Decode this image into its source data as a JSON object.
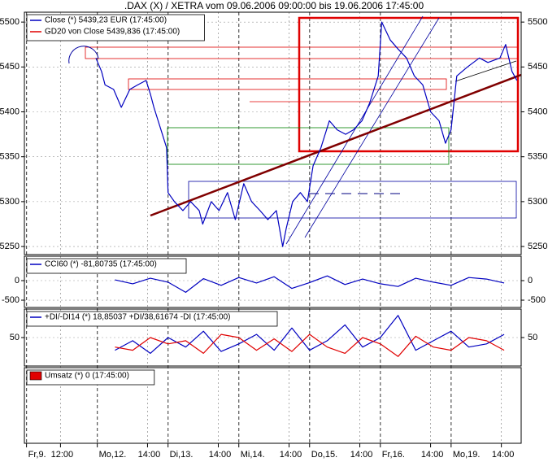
{
  "title": ".DAX (X) / XETRA vom 09.06.2006 09:00:00 bis 19.06.2006 17:45:00",
  "xaxis": {
    "xlim": [
      -0.03,
      6.99
    ],
    "xticks": [
      {
        "value": 0,
        "label": "Fr,9."
      },
      {
        "value": 0.48,
        "label": "12:00"
      },
      {
        "value": 1,
        "label": "Mo,12."
      },
      {
        "value": 1.71,
        "label": "14:00"
      },
      {
        "value": 2,
        "label": "Di,13."
      },
      {
        "value": 2.71,
        "label": "14:00"
      },
      {
        "value": 3,
        "label": "Mi,14."
      },
      {
        "value": 3.71,
        "label": "14:00"
      },
      {
        "value": 4,
        "label": "Do,15."
      },
      {
        "value": 4.71,
        "label": "14:00"
      },
      {
        "value": 5,
        "label": "Fr,16."
      },
      {
        "value": 5.71,
        "label": "14:00"
      },
      {
        "value": 6,
        "label": "Mo,19."
      },
      {
        "value": 6.71,
        "label": "14:00"
      }
    ]
  },
  "chart_data": [
    {
      "type": "line",
      "legend": [
        {
          "text": "Close (*) 5439,23 EUR (17:45:00)",
          "color": "#0000c0"
        },
        {
          "text": "GD20 von Close 5439,836 (17:45:00)",
          "color": "#e00000"
        }
      ],
      "ylim": [
        5241,
        5511
      ],
      "yticks": [
        5250,
        5300,
        5350,
        5400,
        5450,
        5500
      ],
      "series": [
        {
          "color": "#0000c0",
          "x": [
            0.98,
            1.06,
            1.11,
            1.23,
            1.34,
            1.46,
            1.57,
            1.69,
            1.75,
            1.8,
            1.86,
            1.92,
            1.98,
            2.0,
            2.09,
            2.21,
            2.32,
            2.44,
            2.49,
            2.61,
            2.72,
            2.84,
            2.95,
            3.07,
            3.18,
            3.3,
            3.41,
            3.53,
            3.62,
            3.67,
            3.76,
            3.87,
            3.97,
            4.05,
            4.16,
            4.28,
            4.39,
            4.51,
            4.62,
            4.74,
            4.85,
            4.97,
            5.02,
            5.14,
            5.25,
            5.37,
            5.48,
            5.6,
            5.71,
            5.83,
            5.92,
            6.0,
            6.08,
            6.23,
            6.4,
            6.52,
            6.69,
            6.77,
            6.86,
            6.93
          ],
          "values": [
            5460,
            5445,
            5430,
            5425,
            5405,
            5425,
            5430,
            5435,
            5420,
            5405,
            5390,
            5375,
            5360,
            5310,
            5300,
            5290,
            5300,
            5290,
            5275,
            5300,
            5290,
            5310,
            5280,
            5320,
            5300,
            5290,
            5280,
            5290,
            5250,
            5270,
            5300,
            5310,
            5300,
            5340,
            5360,
            5390,
            5380,
            5375,
            5380,
            5390,
            5410,
            5440,
            5500,
            5480,
            5470,
            5460,
            5440,
            5430,
            5400,
            5390,
            5365,
            5380,
            5440,
            5450,
            5460,
            5455,
            5460,
            5475,
            5445,
            5435
          ]
        }
      ]
    },
    {
      "type": "line",
      "legend": [
        {
          "text": "CCI60 (*) -81,80735 (17:45:00)",
          "color": "#0000c0"
        }
      ],
      "ylim": [
        -687,
        625
      ],
      "yticks": [
        0,
        -500
      ],
      "series": [
        {
          "color": "#0000c0",
          "x": [
            1.25,
            1.5,
            1.75,
            2,
            2.25,
            2.5,
            2.75,
            3,
            3.25,
            3.5,
            3.75,
            4,
            4.25,
            4.5,
            4.75,
            5,
            5.25,
            5.5,
            5.75,
            6,
            6.25,
            6.5,
            6.75
          ],
          "values": [
            20,
            -80,
            60,
            -40,
            -300,
            50,
            -120,
            80,
            -60,
            100,
            -200,
            -50,
            120,
            -100,
            40,
            -80,
            -150,
            60,
            -40,
            -120,
            80,
            40,
            -60
          ]
        }
      ]
    },
    {
      "type": "line",
      "legend": [
        {
          "text": "+DI/-DI14 (*) 18,85037 +DI/38,61674 -DI (17:45:00)",
          "color": "#0000c0"
        }
      ],
      "ylim": [
        5,
        95
      ],
      "yticks": [
        50
      ],
      "series": [
        {
          "color": "#0000c0",
          "x": [
            1.25,
            1.5,
            1.75,
            2,
            2.25,
            2.5,
            2.75,
            3,
            3.25,
            3.5,
            3.75,
            4,
            4.25,
            4.5,
            4.75,
            5,
            5.25,
            5.5,
            5.75,
            6,
            6.25,
            6.5,
            6.75
          ],
          "values": [
            30,
            45,
            25,
            50,
            35,
            60,
            28,
            40,
            55,
            30,
            65,
            30,
            45,
            70,
            35,
            50,
            85,
            30,
            45,
            60,
            35,
            40,
            55
          ]
        },
        {
          "color": "#e00000",
          "x": [
            1.25,
            1.5,
            1.75,
            2,
            2.25,
            2.5,
            2.75,
            3,
            3.25,
            3.5,
            3.75,
            4,
            4.25,
            4.5,
            4.75,
            5,
            5.25,
            5.5,
            5.75,
            6,
            6.25,
            6.5,
            6.75
          ],
          "values": [
            35,
            30,
            50,
            40,
            45,
            25,
            55,
            50,
            30,
            48,
            28,
            55,
            35,
            25,
            50,
            40,
            20,
            52,
            35,
            30,
            50,
            45,
            30
          ]
        }
      ]
    },
    {
      "type": "bar",
      "legend": [
        {
          "text": "Umsatz (*) 0 (17:45:00)",
          "color": "#e00000"
        }
      ],
      "series": []
    }
  ]
}
